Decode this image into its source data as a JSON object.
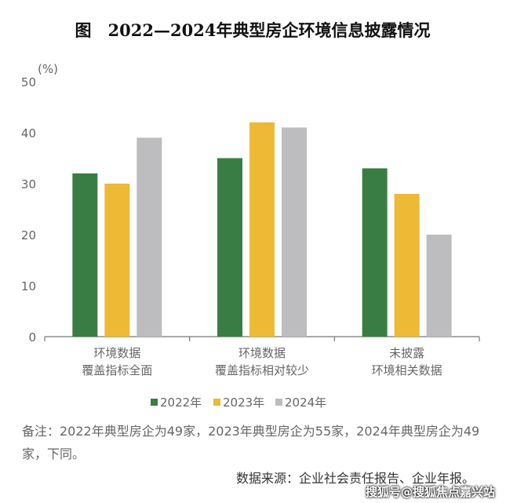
{
  "chart_data": {
    "type": "bar",
    "title": "图　2022—2024年典型房企环境信息披露情况",
    "y_unit": "(%)",
    "categories": [
      [
        "环境数据",
        "覆盖指标全面"
      ],
      [
        "环境数据",
        "覆盖指标相对较少"
      ],
      [
        "未披露",
        "环境相关数据"
      ]
    ],
    "series": [
      {
        "name": "2022年",
        "color": "#3a7d44",
        "values": [
          32,
          35,
          33
        ]
      },
      {
        "name": "2023年",
        "color": "#eeb935",
        "values": [
          30,
          42,
          28
        ]
      },
      {
        "name": "2024年",
        "color": "#bdbdc0",
        "values": [
          39,
          41,
          20
        ]
      }
    ],
    "ylim": [
      0,
      50
    ],
    "yticks": [
      0,
      10,
      20,
      30,
      40,
      50
    ],
    "note": "备注：2022年典型房企为49家，2023年典型房企为55家，2024年典型房企为49家，下同。",
    "source": "数据来源：企业社会责任报告、企业年报。",
    "watermark": "搜狐号@搜狐焦点嘉兴站"
  }
}
